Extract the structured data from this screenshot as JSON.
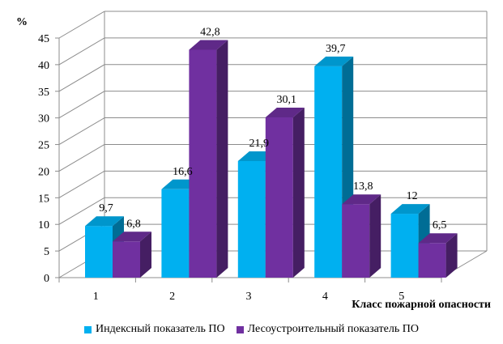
{
  "chart_data": {
    "type": "bar",
    "categories": [
      "1",
      "2",
      "3",
      "4",
      "5"
    ],
    "series": [
      {
        "name": "Индексный показатель ПО",
        "values": [
          9.7,
          16.6,
          21.9,
          39.7,
          12
        ],
        "labels": [
          "9,7",
          "16,6",
          "21,9",
          "39,7",
          "12"
        ],
        "color": "#00b0f0"
      },
      {
        "name": "Лесоустроительный показатель ПО",
        "values": [
          6.8,
          42.8,
          30.1,
          13.8,
          6.5
        ],
        "labels": [
          "6,8",
          "42,8",
          "30,1",
          "13,8",
          "6,5"
        ],
        "color": "#7030a0"
      }
    ],
    "ylabel": "%",
    "xlabel": "Класс пожарной опасности",
    "ylim": [
      0,
      45
    ],
    "yticks": [
      "0",
      "5",
      "10",
      "15",
      "20",
      "25",
      "30",
      "35",
      "40",
      "45"
    ],
    "grid": true,
    "legend_position": "bottom",
    "style": "3d-clustered-column"
  }
}
